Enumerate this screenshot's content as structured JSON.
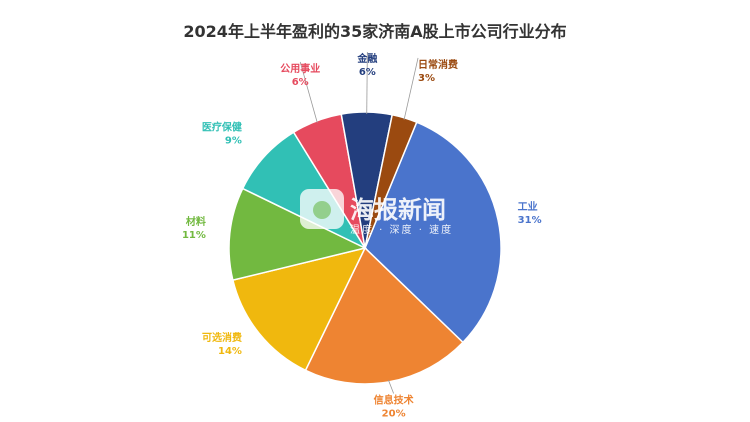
{
  "chart_data": {
    "type": "pie",
    "title": "2024年上半年盈利的35家济南A股上市公司行业分布",
    "slices": [
      {
        "name": "工业",
        "value": 31,
        "label": "31%",
        "color": "#4a74cc"
      },
      {
        "name": "信息技术",
        "value": 20,
        "label": "20%",
        "color": "#ee8432"
      },
      {
        "name": "可选消费",
        "value": 14,
        "label": "14%",
        "color": "#f0b80e"
      },
      {
        "name": "材料",
        "value": 11,
        "label": "11%",
        "color": "#72b940"
      },
      {
        "name": "医疗保健",
        "value": 9,
        "label": "9%",
        "color": "#31c0b5"
      },
      {
        "name": "公用事业",
        "value": 6,
        "label": "6%",
        "color": "#e64a5e"
      },
      {
        "name": "金融",
        "value": 6,
        "label": "6%",
        "color": "#233e7e"
      },
      {
        "name": "日常消费",
        "value": 3,
        "label": "3%",
        "color": "#9b4a10"
      }
    ]
  },
  "watermark": {
    "brand": "海报新闻",
    "tagline": "温度 · 深度 · 速度"
  }
}
